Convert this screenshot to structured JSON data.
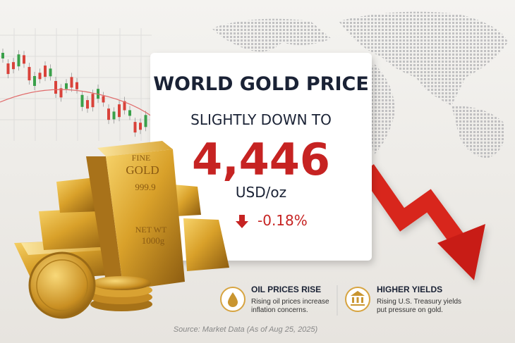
{
  "card": {
    "title": "WORLD GOLD PRICE",
    "subtitle": "SLIGHTLY DOWN TO",
    "price": "4,446",
    "unit": "USD/oz",
    "change": "-0.18%"
  },
  "gold_bar": {
    "line1": "FINE",
    "line2": "GOLD",
    "line3": "999.9",
    "line4": "NET WT",
    "line5": "1000g"
  },
  "factors": [
    {
      "title": "OIL PRICES RISE",
      "text_line1": "Rising oil prices increase",
      "text_line2": "inflation concerns."
    },
    {
      "title": "HIGHER YIELDS",
      "text_line1": "Rising U.S. Treasury yields",
      "text_line2": "put pressure on gold."
    }
  ],
  "source": "Source: Market Data (As of Aug 25, 2025)"
}
